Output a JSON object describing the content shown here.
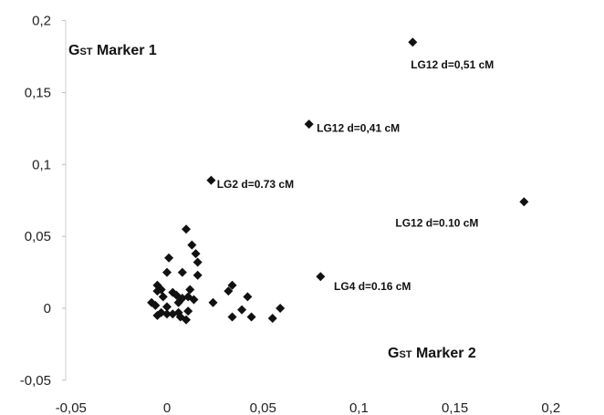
{
  "chart_data": {
    "type": "scatter",
    "xlabel_main": "G",
    "xlabel_sub": "ST",
    "xlabel_rest": " Marker 2",
    "ylabel_main": "G",
    "ylabel_sub": "ST",
    "ylabel_rest": " Marker 1",
    "xlim": [
      -0.05,
      0.2
    ],
    "ylim": [
      -0.05,
      0.2
    ],
    "x_ticks": [
      -0.05,
      0,
      0.05,
      0.1,
      0.15,
      0.2
    ],
    "x_tick_labels": [
      "-0,05",
      "0",
      "0,05",
      "0,1",
      "0,15",
      "0,2"
    ],
    "y_ticks": [
      -0.05,
      0,
      0.05,
      0.1,
      0.15,
      0.2
    ],
    "y_tick_labels": [
      "-0,05",
      "0",
      "0,05",
      "0,1",
      "0,15",
      "0,2"
    ],
    "grid": false,
    "marker": "diamond",
    "color": "#111111",
    "points": [
      {
        "x": 0.128,
        "y": 0.185
      },
      {
        "x": 0.074,
        "y": 0.128
      },
      {
        "x": 0.023,
        "y": 0.089
      },
      {
        "x": 0.186,
        "y": 0.074
      },
      {
        "x": 0.08,
        "y": 0.022
      },
      {
        "x": 0.01,
        "y": 0.055
      },
      {
        "x": 0.013,
        "y": 0.044
      },
      {
        "x": 0.001,
        "y": 0.035
      },
      {
        "x": 0.015,
        "y": 0.038
      },
      {
        "x": 0.016,
        "y": 0.032
      },
      {
        "x": 0.0,
        "y": 0.025
      },
      {
        "x": 0.008,
        "y": 0.025
      },
      {
        "x": 0.016,
        "y": 0.023
      },
      {
        "x": -0.005,
        "y": 0.016
      },
      {
        "x": -0.003,
        "y": 0.013
      },
      {
        "x": -0.005,
        "y": 0.012
      },
      {
        "x": -0.002,
        "y": 0.008
      },
      {
        "x": 0.003,
        "y": 0.011
      },
      {
        "x": 0.005,
        "y": 0.009
      },
      {
        "x": 0.012,
        "y": 0.013
      },
      {
        "x": 0.011,
        "y": 0.008
      },
      {
        "x": 0.014,
        "y": 0.006
      },
      {
        "x": 0.008,
        "y": 0.007
      },
      {
        "x": 0.006,
        "y": 0.004
      },
      {
        "x": -0.008,
        "y": 0.004
      },
      {
        "x": -0.006,
        "y": 0.002
      },
      {
        "x": 0.0,
        "y": 0.001
      },
      {
        "x": -0.003,
        "y": -0.003
      },
      {
        "x": -0.005,
        "y": -0.005
      },
      {
        "x": 0.0,
        "y": -0.004
      },
      {
        "x": 0.003,
        "y": -0.004
      },
      {
        "x": 0.007,
        "y": -0.006
      },
      {
        "x": 0.01,
        "y": -0.008
      },
      {
        "x": 0.006,
        "y": -0.003
      },
      {
        "x": 0.011,
        "y": -0.002
      },
      {
        "x": 0.024,
        "y": 0.004
      },
      {
        "x": 0.032,
        "y": 0.012
      },
      {
        "x": 0.034,
        "y": 0.016
      },
      {
        "x": 0.042,
        "y": 0.008
      },
      {
        "x": 0.039,
        "y": -0.001
      },
      {
        "x": 0.034,
        "y": -0.006
      },
      {
        "x": 0.044,
        "y": -0.006
      },
      {
        "x": 0.055,
        "y": -0.007
      },
      {
        "x": 0.059,
        "y": 0.0
      }
    ],
    "annotations": [
      {
        "text": "LG12  d=0,51 cM",
        "x": 0.127,
        "y": 0.17
      },
      {
        "text": "LG12 d=0,41 cM",
        "x": 0.078,
        "y": 0.126
      },
      {
        "text": "LG2  d=0.73 cM",
        "x": 0.026,
        "y": 0.087
      },
      {
        "text": "LG12 d=0.10 cM",
        "x": 0.119,
        "y": 0.06
      },
      {
        "text": "LG4  d=0.16 cM",
        "x": 0.087,
        "y": 0.016
      }
    ]
  }
}
